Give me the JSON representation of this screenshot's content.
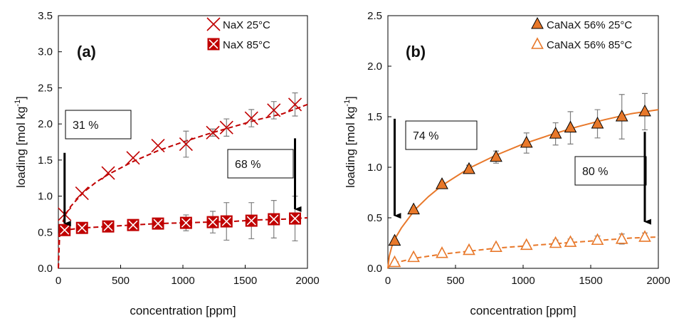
{
  "chart_data": [
    {
      "type": "scatter",
      "panel_label": "(a)",
      "xlabel": "concentration [ppm]",
      "ylabel": "loading [mol kg",
      "ylabel_sup": "-1",
      "ylabel_end": "]",
      "xlim": [
        0,
        2000
      ],
      "ylim": [
        0,
        3.5
      ],
      "x_ticks": [
        0,
        500,
        1000,
        1500,
        2000
      ],
      "y_ticks": [
        0.0,
        0.5,
        1.0,
        1.5,
        2.0,
        2.5,
        3.0,
        3.5
      ],
      "grid": false,
      "legend_position": "top-right",
      "series": [
        {
          "name": "NaX 25°C",
          "marker": "x",
          "color": "#c00000",
          "x": [
            50,
            190,
            400,
            600,
            800,
            1025,
            1240,
            1350,
            1550,
            1730,
            1900
          ],
          "y": [
            0.75,
            1.04,
            1.32,
            1.53,
            1.7,
            1.72,
            1.88,
            1.95,
            2.08,
            2.19,
            2.27
          ],
          "err": [
            0,
            0,
            0,
            0,
            0,
            0.18,
            0.05,
            0.12,
            0.12,
            0.12,
            0.16
          ],
          "fit": {
            "style": "dashed",
            "x": [
              0,
              10,
              30,
              60,
              100,
              200,
              300,
              400,
              600,
              800,
              1000,
              1200,
              1400,
              1600,
              1800,
              2000
            ],
            "y": [
              0.0,
              0.46,
              0.62,
              0.75,
              0.86,
              1.05,
              1.19,
              1.3,
              1.48,
              1.63,
              1.75,
              1.86,
              1.96,
              2.06,
              2.14,
              2.27
            ]
          }
        },
        {
          "name": "NaX 85°C",
          "marker": "boxed-x",
          "color": "#c00000",
          "x": [
            50,
            190,
            400,
            600,
            800,
            1025,
            1240,
            1350,
            1550,
            1730,
            1900
          ],
          "y": [
            0.53,
            0.56,
            0.58,
            0.6,
            0.62,
            0.63,
            0.64,
            0.65,
            0.66,
            0.68,
            0.69
          ],
          "err": [
            0.04,
            0.04,
            0.04,
            0.05,
            0.05,
            0.11,
            0.15,
            0.26,
            0.25,
            0.26,
            0.31
          ],
          "fit": {
            "style": "dashed",
            "x": [
              0,
              5,
              20,
              50,
              100,
              200,
              400,
              600,
              800,
              1000,
              1200,
              1400,
              1600,
              1800,
              2000
            ],
            "y": [
              0.0,
              0.48,
              0.51,
              0.53,
              0.54,
              0.56,
              0.58,
              0.6,
              0.62,
              0.63,
              0.64,
              0.65,
              0.67,
              0.68,
              0.7
            ]
          }
        }
      ],
      "annotations": [
        {
          "text": "31 %",
          "arrow_x": 50,
          "arrow_y_start": 1.6,
          "arrow_y_end": 0.62
        },
        {
          "text": "68 %",
          "arrow_x": 1900,
          "arrow_y_start": 1.8,
          "arrow_y_end": 0.82
        }
      ]
    },
    {
      "type": "scatter",
      "panel_label": "(b)",
      "xlabel": "concentration [ppm]",
      "ylabel": "loading [mol kg",
      "ylabel_sup": "-1",
      "ylabel_end": "]",
      "xlim": [
        0,
        2000
      ],
      "ylim": [
        0,
        2.5
      ],
      "x_ticks": [
        0,
        500,
        1000,
        1500,
        2000
      ],
      "y_ticks": [
        0.0,
        0.5,
        1.0,
        1.5,
        2.0,
        2.5
      ],
      "grid": false,
      "legend_position": "top-right",
      "series": [
        {
          "name": "CaNaX 56% 25°C",
          "marker": "triangle-filled",
          "color": "#e8782a",
          "x": [
            50,
            190,
            400,
            600,
            800,
            1025,
            1240,
            1350,
            1550,
            1730,
            1900
          ],
          "y": [
            0.27,
            0.58,
            0.83,
            0.98,
            1.1,
            1.24,
            1.33,
            1.39,
            1.43,
            1.5,
            1.55
          ],
          "err": [
            0,
            0.02,
            0.02,
            0.04,
            0.06,
            0.1,
            0.11,
            0.16,
            0.14,
            0.22,
            0.18
          ],
          "fit": {
            "style": "solid",
            "x": [
              0,
              10,
              30,
              60,
              100,
              200,
              300,
              400,
              600,
              800,
              1000,
              1200,
              1400,
              1600,
              1800,
              2000
            ],
            "y": [
              0.0,
              0.12,
              0.22,
              0.31,
              0.4,
              0.58,
              0.71,
              0.82,
              0.99,
              1.12,
              1.23,
              1.32,
              1.4,
              1.47,
              1.53,
              1.57
            ]
          }
        },
        {
          "name": "CaNaX 56% 85°C",
          "marker": "triangle-open",
          "color": "#e8782a",
          "x": [
            50,
            190,
            400,
            600,
            800,
            1025,
            1240,
            1350,
            1550,
            1730,
            1900
          ],
          "y": [
            0.06,
            0.11,
            0.15,
            0.18,
            0.21,
            0.23,
            0.25,
            0.26,
            0.28,
            0.29,
            0.31
          ],
          "err": [
            0,
            0.01,
            0.01,
            0.01,
            0.02,
            0.02,
            0.03,
            0.03,
            0.04,
            0.05,
            0.04
          ],
          "fit": {
            "style": "dashed",
            "x": [
              0,
              10,
              30,
              60,
              100,
              200,
              400,
              600,
              800,
              1000,
              1200,
              1400,
              1600,
              1800,
              2000
            ],
            "y": [
              0.0,
              0.02,
              0.04,
              0.06,
              0.07,
              0.1,
              0.14,
              0.17,
              0.2,
              0.22,
              0.24,
              0.26,
              0.28,
              0.3,
              0.31
            ]
          }
        }
      ],
      "annotations": [
        {
          "text": "74 %",
          "arrow_x": 50,
          "arrow_y_start": 1.48,
          "arrow_y_end": 0.52
        },
        {
          "text": "80 %",
          "arrow_x": 1900,
          "arrow_y_start": 1.35,
          "arrow_y_end": 0.46
        }
      ]
    }
  ]
}
